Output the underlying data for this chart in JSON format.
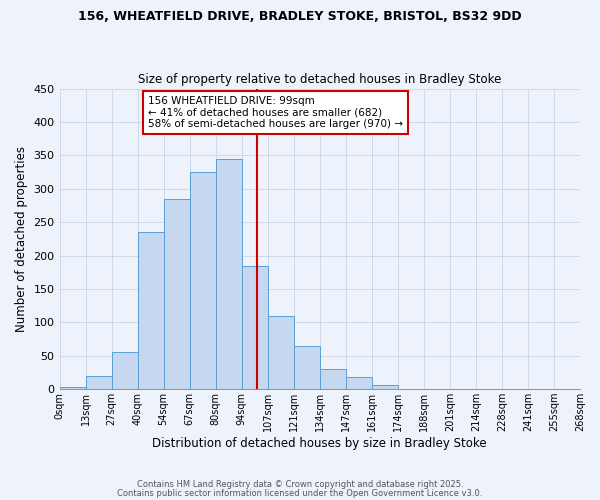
{
  "title1": "156, WHEATFIELD DRIVE, BRADLEY STOKE, BRISTOL, BS32 9DD",
  "title2": "Size of property relative to detached houses in Bradley Stoke",
  "xlabel": "Distribution of detached houses by size in Bradley Stoke",
  "ylabel": "Number of detached properties",
  "bin_labels": [
    "0sqm",
    "13sqm",
    "27sqm",
    "40sqm",
    "54sqm",
    "67sqm",
    "80sqm",
    "94sqm",
    "107sqm",
    "121sqm",
    "134sqm",
    "147sqm",
    "161sqm",
    "174sqm",
    "188sqm",
    "201sqm",
    "214sqm",
    "228sqm",
    "241sqm",
    "255sqm",
    "268sqm"
  ],
  "bar_heights": [
    3,
    20,
    55,
    235,
    285,
    325,
    345,
    185,
    110,
    65,
    30,
    18,
    6,
    0,
    0,
    0,
    0,
    0,
    0,
    0
  ],
  "bar_color": "#c5d8f0",
  "bar_edge_color": "#5a9fd4",
  "vline_pos": 7.6,
  "vline_color": "#cc0000",
  "annotation_title": "156 WHEATFIELD DRIVE: 99sqm",
  "annotation_line1": "← 41% of detached houses are smaller (682)",
  "annotation_line2": "58% of semi-detached houses are larger (970) →",
  "annotation_box_color": "#ffffff",
  "annotation_box_edge": "#cc0000",
  "ylim": [
    0,
    450
  ],
  "yticks": [
    0,
    50,
    100,
    150,
    200,
    250,
    300,
    350,
    400,
    450
  ],
  "footer1": "Contains HM Land Registry data © Crown copyright and database right 2025.",
  "footer2": "Contains public sector information licensed under the Open Government Licence v3.0.",
  "bg_color": "#eef2fb",
  "plot_bg_color": "#eef2fb",
  "grid_color": "#c8d4e8"
}
